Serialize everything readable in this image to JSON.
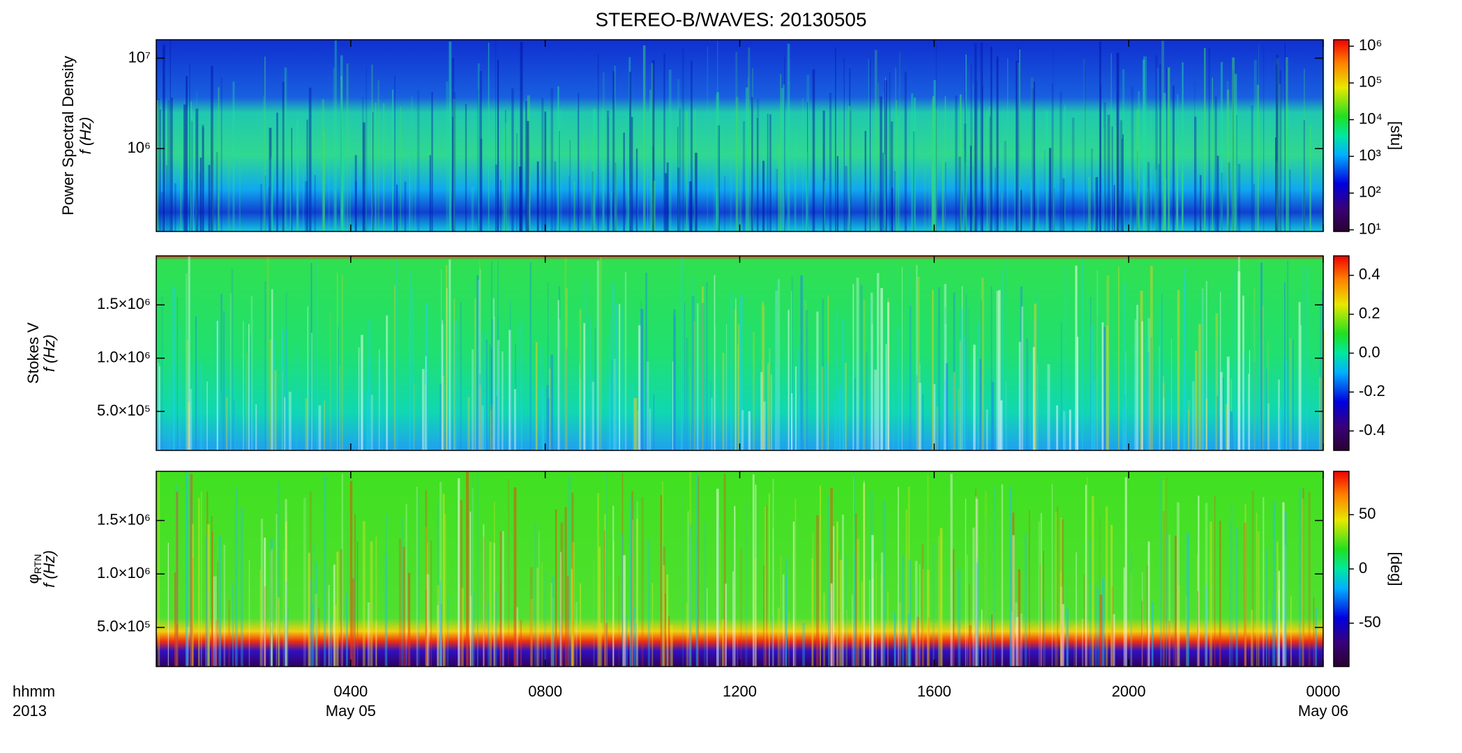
{
  "title": "STEREO-B/WAVES: 20130505",
  "x_axis": {
    "xlim": [
      0,
      24
    ],
    "xticks": [
      {
        "value": 4,
        "label": "0400"
      },
      {
        "value": 8,
        "label": "0800"
      },
      {
        "value": 12,
        "label": "1200"
      },
      {
        "value": 16,
        "label": "1600"
      },
      {
        "value": 20,
        "label": "2000"
      },
      {
        "value": 24,
        "label": "0000"
      }
    ],
    "date_labels": [
      {
        "value": 4,
        "label": "May 05"
      },
      {
        "value": 24,
        "label": "May 06"
      }
    ],
    "unit_label": "hhmm",
    "year_label": "2013"
  },
  "chart_data": [
    {
      "type": "heatmap",
      "ylabel": [
        "Power Spectral Density",
        "f (Hz)"
      ],
      "log_y": true,
      "ylim": [
        121000,
        16000000
      ],
      "yticks": [
        {
          "value": 1000000,
          "label": "10⁶"
        },
        {
          "value": 10000000,
          "label": "10⁷"
        }
      ],
      "colorbar": {
        "log": true,
        "lim": [
          9,
          1500000
        ],
        "label": "[sfu]",
        "ticks": [
          {
            "value": 10,
            "label": "10¹"
          },
          {
            "value": 100,
            "label": "10²"
          },
          {
            "value": 1000,
            "label": "10³"
          },
          {
            "value": 10000,
            "label": "10⁴"
          },
          {
            "value": 100000,
            "label": "10⁵"
          },
          {
            "value": 1000000,
            "label": "10⁶"
          }
        ]
      }
    },
    {
      "type": "heatmap",
      "ylabel": [
        "Stokes V",
        "f (Hz)"
      ],
      "log_y": false,
      "ylim": [
        134000,
        1960000
      ],
      "yticks": [
        {
          "value": 500000,
          "label": "5.0×10⁵"
        },
        {
          "value": 1000000,
          "label": "1.0×10⁶"
        },
        {
          "value": 1500000,
          "label": "1.5×10⁶"
        }
      ],
      "colorbar": {
        "log": false,
        "lim": [
          -0.5,
          0.5
        ],
        "label": "",
        "ticks": [
          -0.4,
          -0.2,
          {
            "value": 0,
            "label": "0.0"
          },
          0.2,
          0.4
        ]
      }
    },
    {
      "type": "heatmap",
      "ylabel": [
        "φRTN",
        "f (Hz)"
      ],
      "log_y": false,
      "ylim": [
        134000,
        1960000
      ],
      "yticks": [
        {
          "value": 500000,
          "label": "5.0×10⁵"
        },
        {
          "value": 1000000,
          "label": "1.0×10⁶"
        },
        {
          "value": 1500000,
          "label": "1.5×10⁶"
        }
      ],
      "colorbar": {
        "log": false,
        "lim": [
          -90,
          90
        ],
        "label": "[deg]",
        "ticks": [
          -50,
          0,
          50
        ]
      }
    }
  ]
}
